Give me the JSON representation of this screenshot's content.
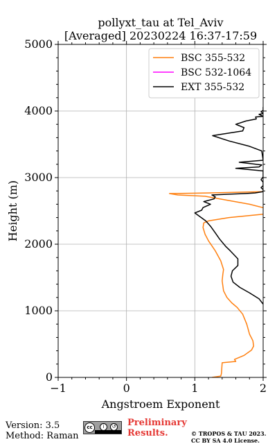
{
  "chart_data": {
    "type": "line",
    "title": "pollyxt_tau at Tel_Aviv",
    "subtitle": "[Averaged] 20230224 16:37-17:59",
    "xlabel": "Angstroem Exponent",
    "ylabel": "Height (m)",
    "xlim": [
      -1,
      2
    ],
    "ylim": [
      0,
      5000
    ],
    "xticks": [
      "−1",
      "0",
      "1",
      "2"
    ],
    "yticks": [
      "0",
      "1000",
      "2000",
      "3000",
      "4000",
      "5000"
    ],
    "grid": true,
    "legend_position": "top-right",
    "series": [
      {
        "name": "BSC 355-532",
        "color": "#ff7f0e",
        "x": [
          1.25,
          1.38,
          1.39,
          1.4,
          1.6,
          1.58,
          1.72,
          1.83,
          1.86,
          1.85,
          1.8,
          1.76,
          1.7,
          1.62,
          1.54,
          1.47,
          1.42,
          1.4,
          1.41,
          1.42,
          1.38,
          1.3,
          1.2,
          1.15,
          1.12,
          1.13,
          1.2,
          1.5,
          2.0,
          2.3,
          1.8,
          1.15,
          0.75,
          0.63,
          1.2,
          2.0
        ],
        "y": [
          0,
          20,
          60,
          220,
          240,
          270,
          330,
          410,
          470,
          550,
          650,
          800,
          950,
          1050,
          1120,
          1200,
          1300,
          1450,
          1550,
          1620,
          1750,
          1900,
          2050,
          2150,
          2250,
          2320,
          2350,
          2400,
          2450,
          2470,
          2600,
          2720,
          2740,
          2760,
          2770,
          2790
        ]
      },
      {
        "name": "BSC 532-1064",
        "color": "#ff00ff",
        "x": [],
        "y": []
      },
      {
        "name": "EXT 355-532",
        "color": "#000000",
        "x": [
          2.0,
          1.94,
          1.8,
          1.66,
          1.56,
          1.53,
          1.55,
          1.63,
          1.63,
          1.52,
          1.45,
          1.36,
          1.3,
          1.23,
          1.16,
          1.0,
          1.1,
          1.12,
          1.23,
          1.13,
          1.28,
          1.3,
          1.25,
          1.48,
          1.73,
          1.88,
          2.0,
          2.0,
          1.97,
          2.0,
          2.0,
          2.0,
          1.97,
          2.0,
          2.0,
          1.6,
          1.94,
          1.98,
          1.65,
          2.0,
          1.98,
          1.8,
          1.5,
          1.26,
          1.7,
          1.72,
          1.6,
          1.75,
          1.9,
          1.89,
          2.0,
          1.94,
          2.0,
          1.97,
          2.0,
          2.0
        ],
        "y": [
          1100,
          1180,
          1270,
          1350,
          1430,
          1520,
          1600,
          1680,
          1780,
          1900,
          1970,
          2080,
          2170,
          2270,
          2350,
          2470,
          2510,
          2550,
          2600,
          2640,
          2680,
          2710,
          2740,
          2750,
          2760,
          2770,
          2790,
          2820,
          2850,
          2880,
          2900,
          2930,
          2970,
          3010,
          3100,
          3140,
          3160,
          3190,
          3230,
          3260,
          3400,
          3470,
          3550,
          3630,
          3700,
          3750,
          3800,
          3850,
          3880,
          3910,
          3920,
          3950,
          3960,
          3990,
          4010,
          4060
        ]
      }
    ]
  },
  "footer": {
    "version": "Version: 3.5",
    "method": "Method: Raman",
    "prelim_line1": "Preliminary",
    "prelim_line2": "Results.",
    "copyright_line1": "© TROPOS & TAU 2023.",
    "copyright_line2": "CC BY SA 4.0 License.",
    "license_badge": "CC BY SA"
  }
}
